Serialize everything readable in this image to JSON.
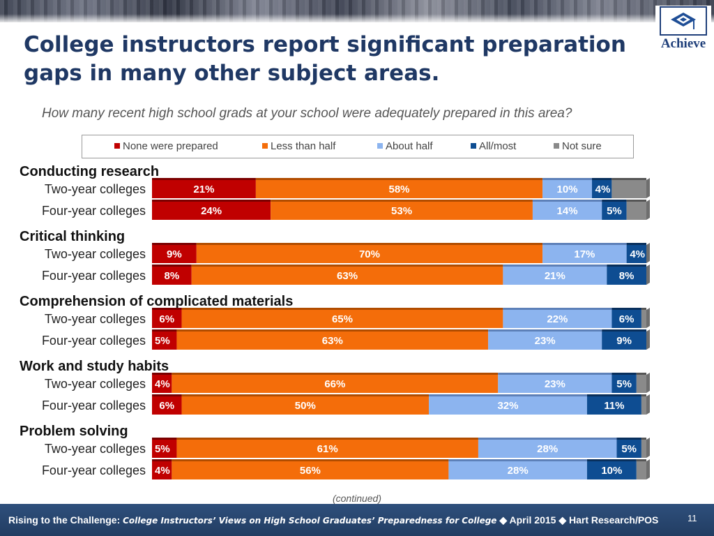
{
  "title": "College instructors report significant preparation gaps in many other subject areas.",
  "logo_text": "Achieve",
  "question": "How many recent high school grads at your school were adequately prepared in this area?",
  "continued": "(continued)",
  "footer": {
    "lead": "Rising to the Challenge:",
    "sub": "College Instructors’ Views on High School Graduates’ Preparedness for College",
    "sep": "◆",
    "date": "April 2015",
    "source": "Hart Research/POS",
    "page": "11"
  },
  "colors": {
    "None were prepared": "#c00000",
    "Less than half": "#f46d0a",
    "About half": "#8cb4ef",
    "All/most": "#0e4d92",
    "Not sure": "#8a8a8a"
  },
  "chart_data": {
    "type": "bar",
    "orientation": "horizontal",
    "stacked": true,
    "title": "How many recent high school grads at your school were adequately prepared in this area?",
    "legend": [
      "None were prepared",
      "Less than half",
      "About half",
      "All/most",
      "Not sure"
    ],
    "legend_position": "top",
    "xlim": [
      0,
      100
    ],
    "groups": [
      {
        "name": "Conducting research",
        "rows": [
          {
            "label": "Two-year colleges",
            "values": [
              21,
              58,
              10,
              4,
              7
            ]
          },
          {
            "label": "Four-year colleges",
            "values": [
              24,
              53,
              14,
              5,
              4
            ]
          }
        ]
      },
      {
        "name": "Critical thinking",
        "rows": [
          {
            "label": "Two-year colleges",
            "values": [
              9,
              70,
              17,
              4,
              0
            ]
          },
          {
            "label": "Four-year colleges",
            "values": [
              8,
              63,
              21,
              8,
              0
            ]
          }
        ]
      },
      {
        "name": "Comprehension of complicated materials",
        "rows": [
          {
            "label": "Two-year colleges",
            "values": [
              6,
              65,
              22,
              6,
              1
            ]
          },
          {
            "label": "Four-year colleges",
            "values": [
              5,
              63,
              23,
              9,
              0
            ]
          }
        ]
      },
      {
        "name": "Work and study habits",
        "rows": [
          {
            "label": "Two-year colleges",
            "values": [
              4,
              66,
              23,
              5,
              2
            ]
          },
          {
            "label": "Four-year colleges",
            "values": [
              6,
              50,
              32,
              11,
              1
            ]
          }
        ]
      },
      {
        "name": "Problem solving",
        "rows": [
          {
            "label": "Two-year colleges",
            "values": [
              5,
              61,
              28,
              5,
              1
            ]
          },
          {
            "label": "Four-year colleges",
            "values": [
              4,
              56,
              28,
              10,
              2
            ]
          }
        ]
      }
    ],
    "data_labels": [
      [
        "21%",
        "58%",
        "10%",
        "4%",
        ""
      ],
      [
        "24%",
        "53%",
        "14%",
        "5%",
        ""
      ],
      [
        "9%",
        "70%",
        "17%",
        "4%",
        ""
      ],
      [
        "8%",
        "63%",
        "21%",
        "8%",
        ""
      ],
      [
        "6%",
        "65%",
        "22%",
        "6%",
        ""
      ],
      [
        "5%",
        "63%",
        "23%",
        "9%",
        ""
      ],
      [
        "4%",
        "66%",
        "23%",
        "5%",
        ""
      ],
      [
        "6%",
        "50%",
        "32%",
        "11%",
        ""
      ],
      [
        "5%",
        "61%",
        "28%",
        "5%",
        ""
      ],
      [
        "4%",
        "56%",
        "28%",
        "10%",
        ""
      ]
    ]
  }
}
